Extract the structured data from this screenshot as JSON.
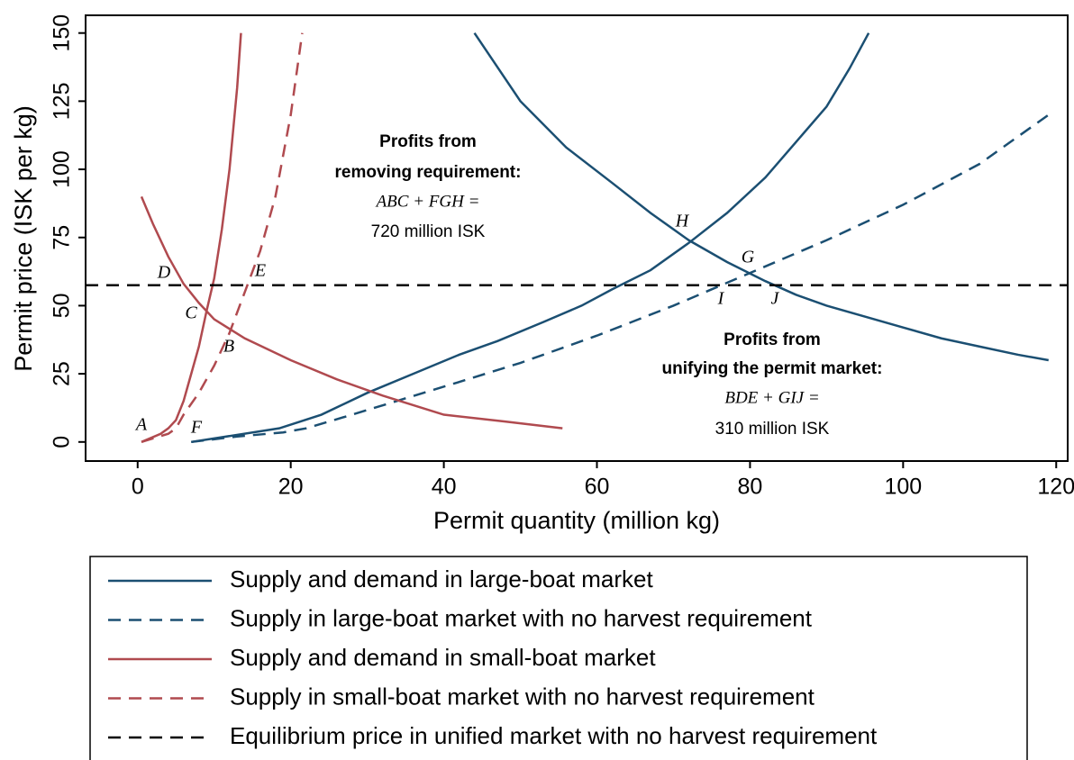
{
  "chart_data": {
    "type": "line",
    "xlabel": "Permit quantity (million kg)",
    "ylabel": "Permit price (ISK per kg)",
    "xlim": [
      -6.8,
      121.5
    ],
    "ylim": [
      -7,
      156.5
    ],
    "xticks": [
      0,
      20,
      40,
      60,
      80,
      100,
      120
    ],
    "yticks": [
      0,
      25,
      50,
      75,
      100,
      125,
      150
    ],
    "series": [
      {
        "name": "Supply and demand in large-boat market",
        "color": "#1b4f72",
        "dash": false,
        "lines": [
          {
            "x": [
              7,
              18.5,
              24,
              30,
              36,
              42,
              47,
              53,
              58,
              62,
              67,
              72,
              77,
              82,
              86,
              90,
              93,
              95.5
            ],
            "values": [
              0,
              5,
              10,
              18,
              25,
              32,
              37,
              44,
              50,
              56,
              63,
              73,
              84,
              97,
              110,
              123,
              137,
              150
            ]
          },
          {
            "x": [
              44,
              50,
              56,
              62,
              67,
              72,
              77,
              82,
              86,
              90,
              95,
              100,
              105,
              110,
              115,
              119
            ],
            "values": [
              150,
              125,
              108,
              95,
              84,
              74,
              66,
              59,
              54,
              50,
              46,
              42,
              38,
              35,
              32,
              30
            ]
          }
        ]
      },
      {
        "name": "Supply in large-boat market with no harvest requirement",
        "color": "#1b4f72",
        "dash": true,
        "lines": [
          {
            "x": [
              7,
              13,
              19,
              22,
              28,
              35,
              42,
              50,
              60,
              70,
              80,
              90,
              100,
              110,
              119
            ],
            "values": [
              0,
              2,
              3.5,
              5,
              10,
              16,
              22,
              29,
              39,
              50,
              62,
              74,
              87,
              102,
              120
            ]
          }
        ]
      },
      {
        "name": "Supply and demand in small-boat market",
        "color": "#b04a4f",
        "dash": false,
        "lines": [
          {
            "x": [
              0.5,
              3,
              4,
              5,
              6,
              7,
              8,
              9,
              10,
              11,
              12,
              13,
              13.5
            ],
            "values": [
              0,
              3,
              5,
              8,
              15,
              25,
              35,
              48,
              60,
              78,
              100,
              130,
              150
            ]
          },
          {
            "x": [
              0.5,
              2,
              4,
              6,
              8,
              10,
              14,
              20,
              26,
              32,
              40,
              48,
              55.5
            ],
            "values": [
              90,
              80,
              68,
              58,
              51,
              45,
              38,
              30,
              23,
              17,
              10,
              7.5,
              5
            ]
          }
        ]
      },
      {
        "name": "Supply in small-boat market with no harvest requirement",
        "color": "#b04a4f",
        "dash": true,
        "lines": [
          {
            "x": [
              0.5,
              4,
              5,
              6,
              8,
              10,
              12,
              14,
              16,
              18,
              20,
              21.5
            ],
            "values": [
              0,
              3,
              5,
              10,
              18,
              28,
              40,
              55,
              70,
              90,
              120,
              150
            ]
          }
        ]
      },
      {
        "name": "Equilibrium price in unified market with no harvest requirement",
        "color": "#000000",
        "dash": true,
        "lines": [
          {
            "x": [
              -6.8,
              121.5
            ],
            "values": [
              57.5,
              57.5
            ]
          }
        ]
      }
    ],
    "point_labels": [
      "A",
      "B",
      "C",
      "D",
      "E",
      "F",
      "G",
      "H",
      "I",
      "J"
    ],
    "annotations": [
      "Profits from",
      "removing requirement:",
      "ABC + FGH =",
      "720 million ISK",
      "Profits from",
      "unifying the permit market:",
      "BDE + GIJ =",
      "310 million ISK"
    ]
  }
}
